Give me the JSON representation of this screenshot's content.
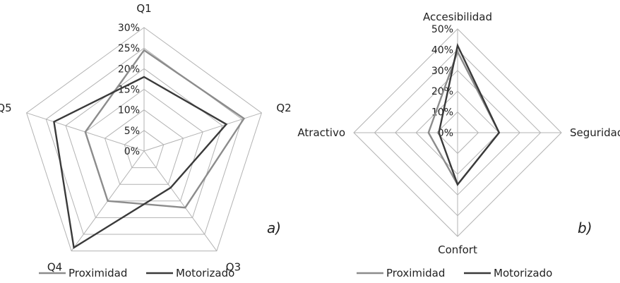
{
  "chart_data": [
    {
      "type": "radar",
      "panel_label": "a)",
      "categories": [
        "Q1",
        "Q2",
        "Q3",
        "Q4",
        "Q5"
      ],
      "rlim": [
        0,
        30
      ],
      "tick_labels": [
        "0%",
        "5%",
        "10%",
        "15%",
        "20%",
        "25%",
        "30%"
      ],
      "series": [
        {
          "name": "Proximidad",
          "values": [
            24.5,
            25.5,
            17,
            15,
            15
          ],
          "color": "#8c8c8c"
        },
        {
          "name": "Motorizado",
          "values": [
            18,
            21,
            11,
            29,
            23
          ],
          "color": "#3a3a3a"
        }
      ],
      "grid": true,
      "legend": "bottom"
    },
    {
      "type": "radar",
      "panel_label": "b)",
      "categories": [
        "Accesibilidad",
        "Seguridad",
        "Confort",
        "Atractivo"
      ],
      "rlim": [
        0,
        50
      ],
      "tick_labels": [
        "0%",
        "10%",
        "20%",
        "30%",
        "40%",
        "50%"
      ],
      "series": [
        {
          "name": "Proximidad",
          "values": [
            39,
            20,
            25,
            14
          ],
          "color": "#8c8c8c"
        },
        {
          "name": "Motorizado",
          "values": [
            42,
            20,
            25,
            9
          ],
          "color": "#3a3a3a"
        }
      ],
      "grid": true,
      "legend": "bottom"
    }
  ]
}
